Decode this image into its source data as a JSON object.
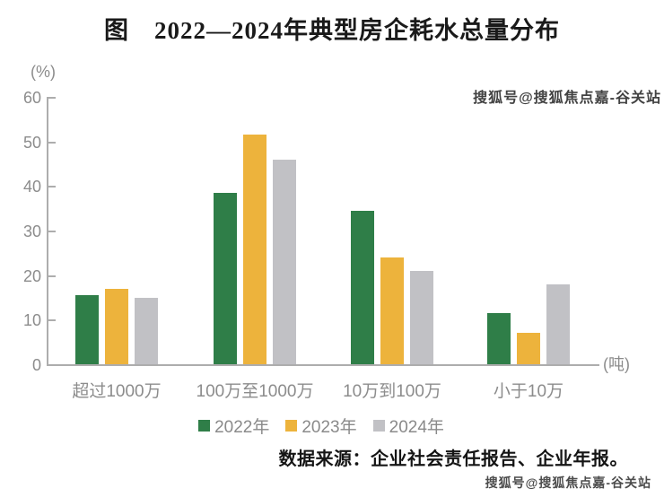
{
  "figure": {
    "title": "图　2022—2024年典型房企耗水总量分布",
    "source": "数据来源：企业社会责任报告、企业年报。",
    "watermark_top": "搜狐号@搜狐焦点嘉-谷关站",
    "watermark_bottom": "搜狐号@搜狐焦点嘉-谷关站"
  },
  "chart_data": {
    "type": "bar",
    "title": "图 2022—2024年典型房企耗水总量分布",
    "y_axis_unit_label": "(%)",
    "x_axis_unit_label": "(吨)",
    "categories": [
      "超过1000万",
      "100万至1000万",
      "10万到100万",
      "小于10万"
    ],
    "series": [
      {
        "name": "2022年",
        "color": "#2F7E48",
        "values": [
          15.5,
          38.5,
          34.5,
          11.5
        ]
      },
      {
        "name": "2023年",
        "color": "#EDB33C",
        "values": [
          17,
          51.5,
          24,
          7
        ]
      },
      {
        "name": "2024年",
        "color": "#C1C1C5",
        "values": [
          15,
          46,
          21,
          18
        ]
      }
    ],
    "ylim": [
      0,
      60
    ],
    "y_ticks": [
      0,
      10,
      20,
      30,
      40,
      50,
      60
    ],
    "grid": false,
    "legend_position": "bottom",
    "axis_color": "#ADADAD",
    "label_color": "#8C8C8C"
  }
}
